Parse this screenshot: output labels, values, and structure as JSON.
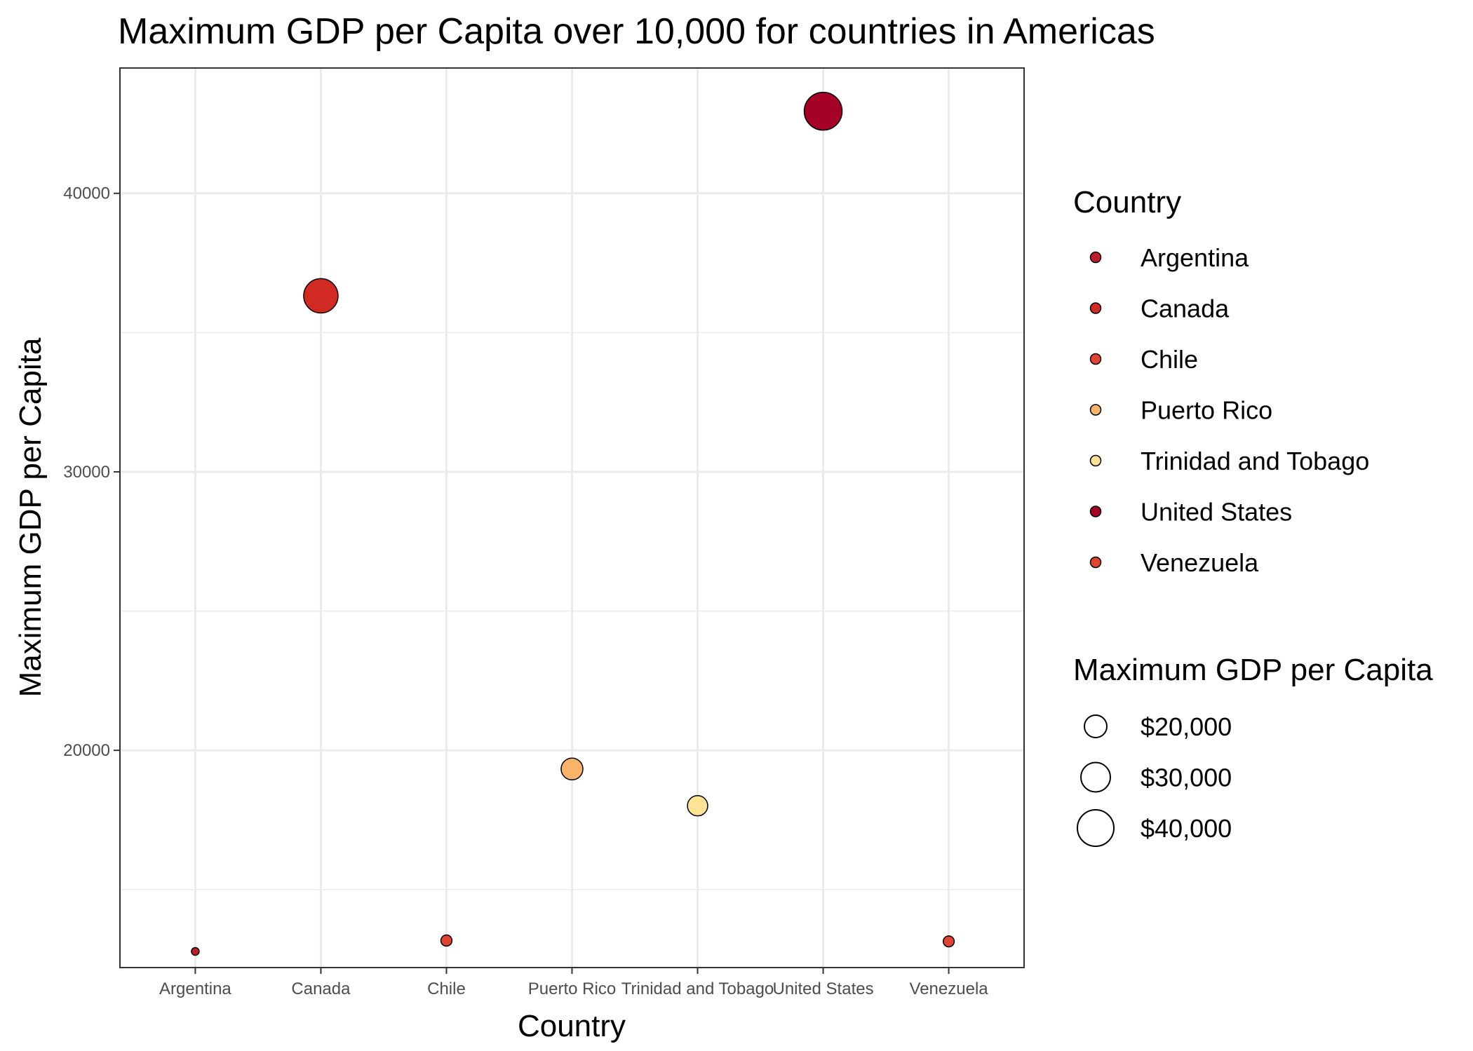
{
  "chart_data": {
    "type": "scatter",
    "title": "Maximum GDP per Capita over 10,000 for countries in Americas",
    "xlabel": "Country",
    "ylabel": "Maximum GDP per Capita",
    "categories": [
      "Argentina",
      "Canada",
      "Chile",
      "Puerto Rico",
      "Trinidad and Tobago",
      "United States",
      "Venezuela"
    ],
    "y_ticks": [
      20000,
      30000,
      40000
    ],
    "y_tick_labels": [
      "20000",
      "30000",
      "40000"
    ],
    "ylim": [
      12200,
      44500
    ],
    "grid": true,
    "points": [
      {
        "country": "Argentina",
        "value": 12780,
        "color": "#bd1e2c"
      },
      {
        "country": "Canada",
        "value": 36320,
        "color": "#d02a23"
      },
      {
        "country": "Chile",
        "value": 13170,
        "color": "#e0432f"
      },
      {
        "country": "Puerto Rico",
        "value": 19330,
        "color": "#f9b46a"
      },
      {
        "country": "Trinidad and Tobago",
        "value": 18010,
        "color": "#fee395"
      },
      {
        "country": "United States",
        "value": 42950,
        "color": "#a50026"
      },
      {
        "country": "Venezuela",
        "value": 13140,
        "color": "#e0432f"
      }
    ],
    "legend": {
      "position": "right",
      "color_title": "Country",
      "color_entries": [
        {
          "label": "Argentina",
          "color": "#bd1e2c"
        },
        {
          "label": "Canada",
          "color": "#d02a23"
        },
        {
          "label": "Chile",
          "color": "#e0432f"
        },
        {
          "label": "Puerto Rico",
          "color": "#f9b46a"
        },
        {
          "label": "Trinidad and Tobago",
          "color": "#fee395"
        },
        {
          "label": "United States",
          "color": "#a50026"
        },
        {
          "label": "Venezuela",
          "color": "#e0432f"
        }
      ],
      "size_title": "Maximum GDP per Capita",
      "size_entries": [
        {
          "label": "$20,000",
          "value": 20000
        },
        {
          "label": "$30,000",
          "value": 30000
        },
        {
          "label": "$40,000",
          "value": 40000
        }
      ]
    }
  }
}
